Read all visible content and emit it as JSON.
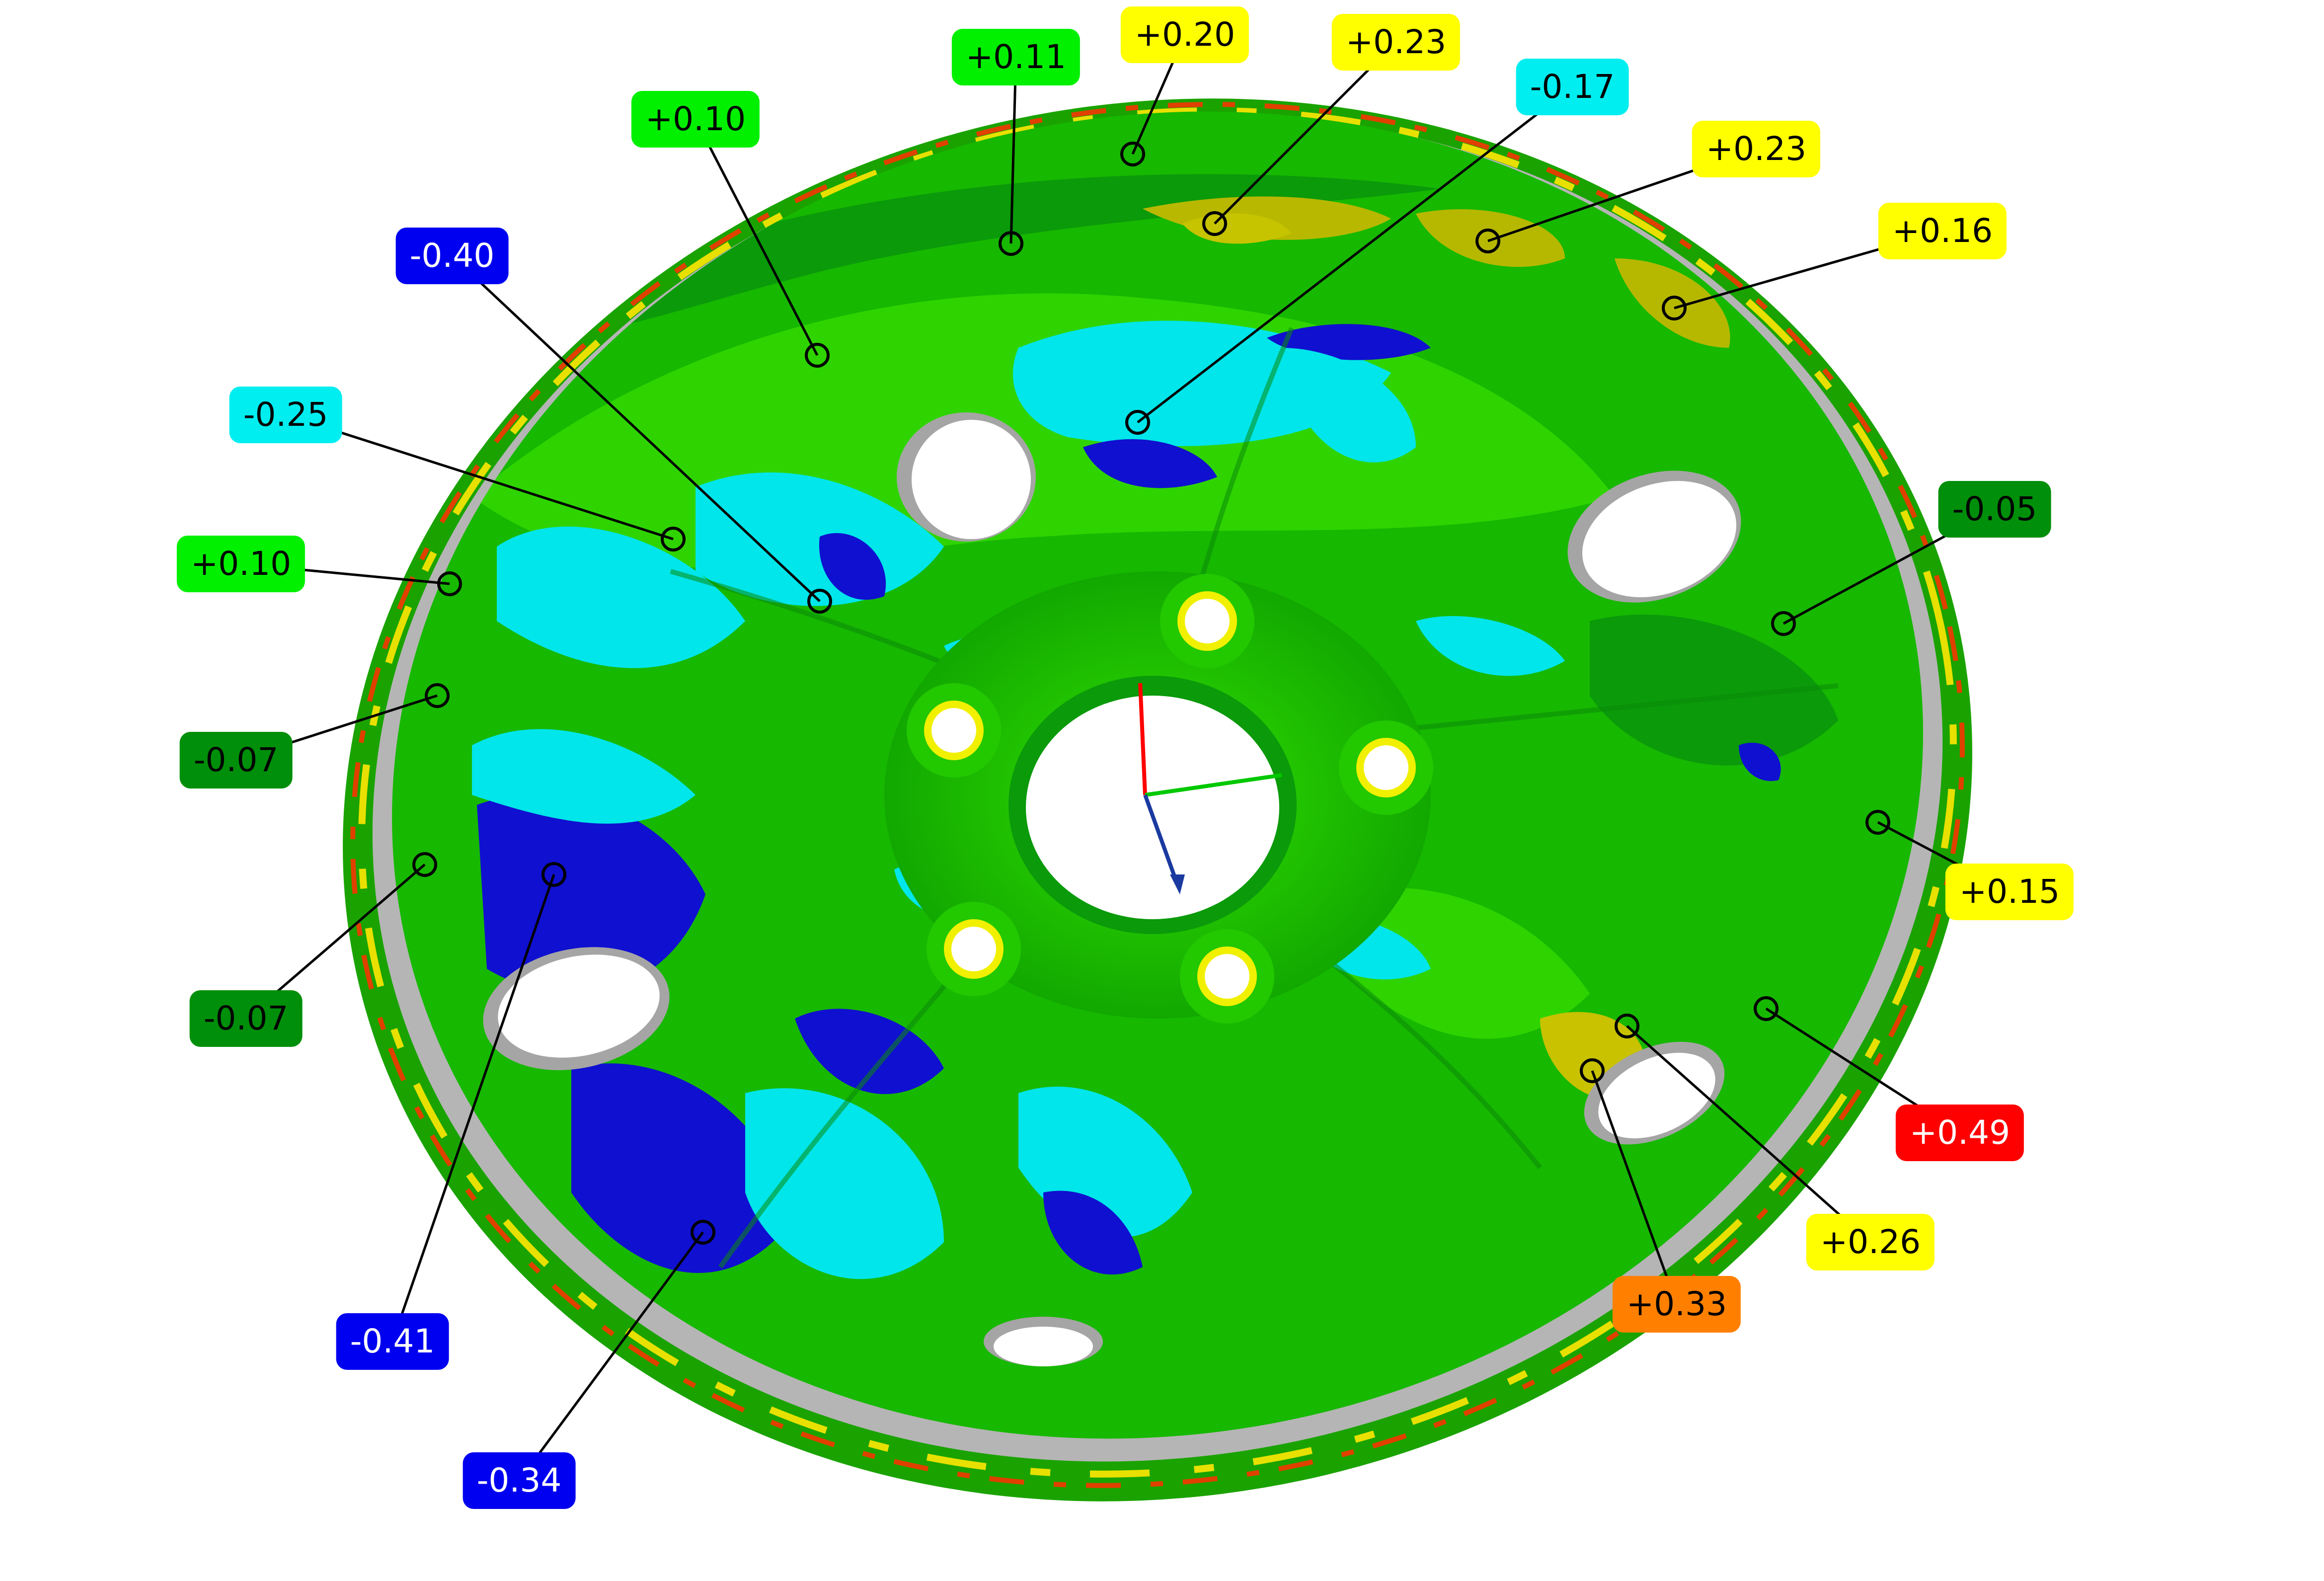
{
  "colors": {
    "dark_green": "#008f0a",
    "green": "#17d400",
    "bright_green": "#00f000",
    "cyan": "#00eef0",
    "blue": "#0000f0",
    "deep_blue": "#1010c0",
    "yellow": "#ffff00",
    "olive": "#b6b800",
    "orange": "#ff8000",
    "red": "#ff0000",
    "hole_grey": "#a9a9a9",
    "leader": "#000000"
  },
  "callouts": [
    {
      "id": "c01",
      "value": "+0.11",
      "color": "bright_green",
      "text_color": "#000000"
    },
    {
      "id": "c02",
      "value": "+0.20",
      "color": "yellow",
      "text_color": "#000000"
    },
    {
      "id": "c03",
      "value": "+0.23",
      "color": "yellow",
      "text_color": "#000000"
    },
    {
      "id": "c04",
      "value": "-0.17",
      "color": "cyan",
      "text_color": "#000000"
    },
    {
      "id": "c05",
      "value": "+0.23",
      "color": "yellow",
      "text_color": "#000000"
    },
    {
      "id": "c06",
      "value": "+0.16",
      "color": "yellow",
      "text_color": "#000000"
    },
    {
      "id": "c07",
      "value": "+0.10",
      "color": "bright_green",
      "text_color": "#000000"
    },
    {
      "id": "c08",
      "value": "-0.40",
      "color": "blue",
      "text_color": "#ffffff"
    },
    {
      "id": "c09",
      "value": "-0.25",
      "color": "cyan",
      "text_color": "#000000"
    },
    {
      "id": "c10",
      "value": "+0.10",
      "color": "bright_green",
      "text_color": "#000000"
    },
    {
      "id": "c11",
      "value": "-0.07",
      "color": "dark_green",
      "text_color": "#000000"
    },
    {
      "id": "c12",
      "value": "-0.07",
      "color": "dark_green",
      "text_color": "#000000"
    },
    {
      "id": "c13",
      "value": "-0.41",
      "color": "blue",
      "text_color": "#ffffff"
    },
    {
      "id": "c14",
      "value": "-0.34",
      "color": "blue",
      "text_color": "#ffffff"
    },
    {
      "id": "c15",
      "value": "-0.05",
      "color": "dark_green",
      "text_color": "#000000"
    },
    {
      "id": "c16",
      "value": "+0.15",
      "color": "yellow",
      "text_color": "#000000"
    },
    {
      "id": "c17",
      "value": "+0.49",
      "color": "red",
      "text_color": "#ffffff"
    },
    {
      "id": "c18",
      "value": "+0.26",
      "color": "yellow",
      "text_color": "#000000"
    },
    {
      "id": "c19",
      "value": "+0.33",
      "color": "orange",
      "text_color": "#000000"
    }
  ]
}
